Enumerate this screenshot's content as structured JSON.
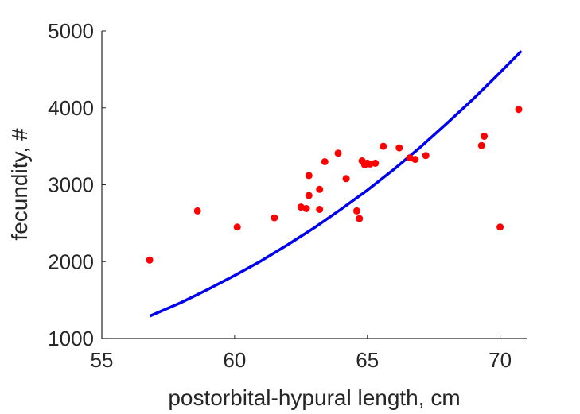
{
  "chart_data": {
    "type": "scatter",
    "xlabel": "postorbital-hypural length, cm",
    "ylabel": "fecundity, #",
    "xlim": [
      55,
      71
    ],
    "ylim": [
      1000,
      5000
    ],
    "xticks": [
      "55",
      "60",
      "65",
      "70"
    ],
    "yticks": [
      "1000",
      "2000",
      "3000",
      "4000",
      "5000"
    ],
    "grid": false,
    "series": [
      {
        "type": "scatter",
        "color": "#ff0000",
        "points": [
          [
            56.8,
            2020
          ],
          [
            58.6,
            2660
          ],
          [
            60.1,
            2450
          ],
          [
            61.5,
            2570
          ],
          [
            62.5,
            2710
          ],
          [
            62.7,
            2690
          ],
          [
            62.8,
            3120
          ],
          [
            62.8,
            2860
          ],
          [
            63.2,
            2940
          ],
          [
            63.2,
            2680
          ],
          [
            63.4,
            3300
          ],
          [
            63.9,
            3410
          ],
          [
            64.2,
            3080
          ],
          [
            64.6,
            2660
          ],
          [
            64.7,
            2560
          ],
          [
            64.8,
            3310
          ],
          [
            64.9,
            3260
          ],
          [
            65.0,
            3280
          ],
          [
            65.1,
            3270
          ],
          [
            65.3,
            3280
          ],
          [
            65.6,
            3500
          ],
          [
            66.2,
            3480
          ],
          [
            66.6,
            3350
          ],
          [
            66.8,
            3330
          ],
          [
            67.2,
            3380
          ],
          [
            69.3,
            3510
          ],
          [
            69.4,
            3630
          ],
          [
            70.0,
            2450
          ],
          [
            70.7,
            3980
          ]
        ]
      },
      {
        "type": "line",
        "color": "#0000ee",
        "x": [
          56.8,
          58,
          59,
          60,
          61,
          62,
          63,
          64,
          65,
          66,
          67,
          68,
          69,
          70,
          70.8
        ],
        "y": [
          1290,
          1470,
          1640,
          1820,
          2010,
          2220,
          2440,
          2680,
          2930,
          3200,
          3490,
          3800,
          4120,
          4460,
          4740
        ]
      }
    ]
  }
}
